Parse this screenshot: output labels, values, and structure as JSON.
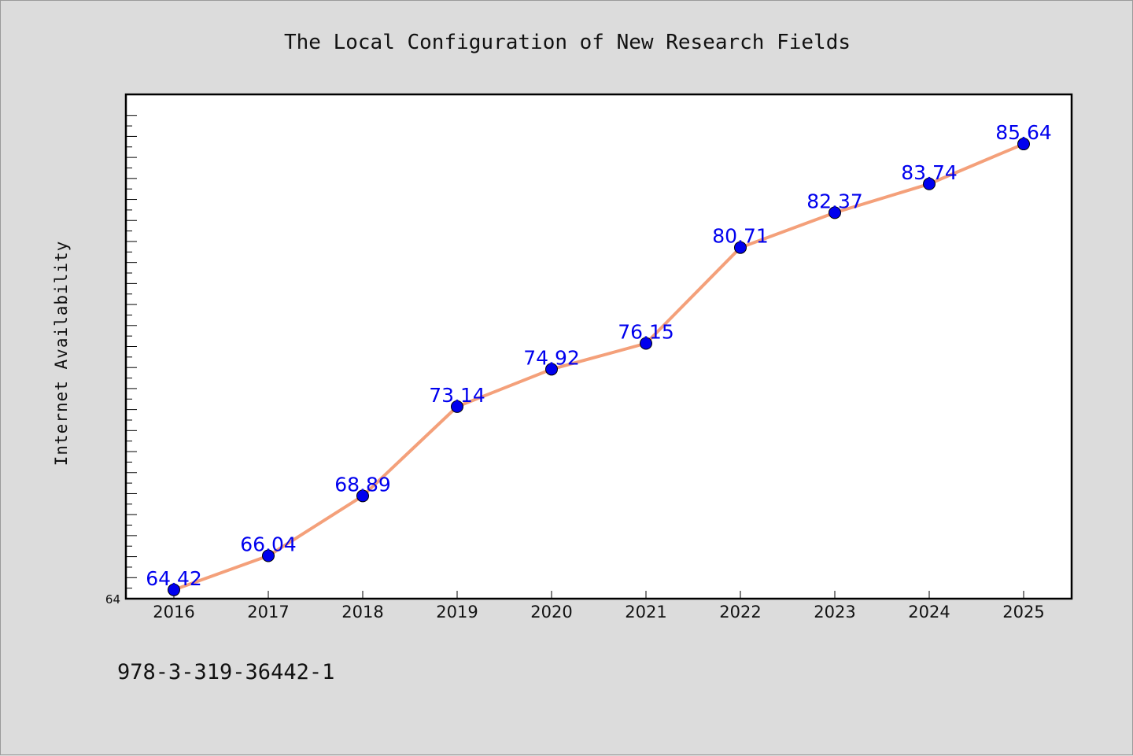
{
  "chart_data": {
    "type": "line",
    "title": "The Local Configuration of New Research Fields",
    "ylabel": "Internet Availability",
    "xlabel": "",
    "categories": [
      "2016",
      "2017",
      "2018",
      "2019",
      "2020",
      "2021",
      "2022",
      "2023",
      "2024",
      "2025"
    ],
    "series": [
      {
        "values": [
          64.42,
          66.04,
          68.89,
          73.14,
          74.92,
          76.15,
          80.71,
          82.37,
          83.74,
          85.64
        ],
        "line_color": "#f4a07a",
        "marker_color": "#0000ee"
      }
    ],
    "ylim": [
      64,
      88
    ],
    "y_tick_labels": [
      "64"
    ],
    "grid": false,
    "data_labels": true
  },
  "footer": {
    "isbn": "978-3-319-36442-1"
  }
}
